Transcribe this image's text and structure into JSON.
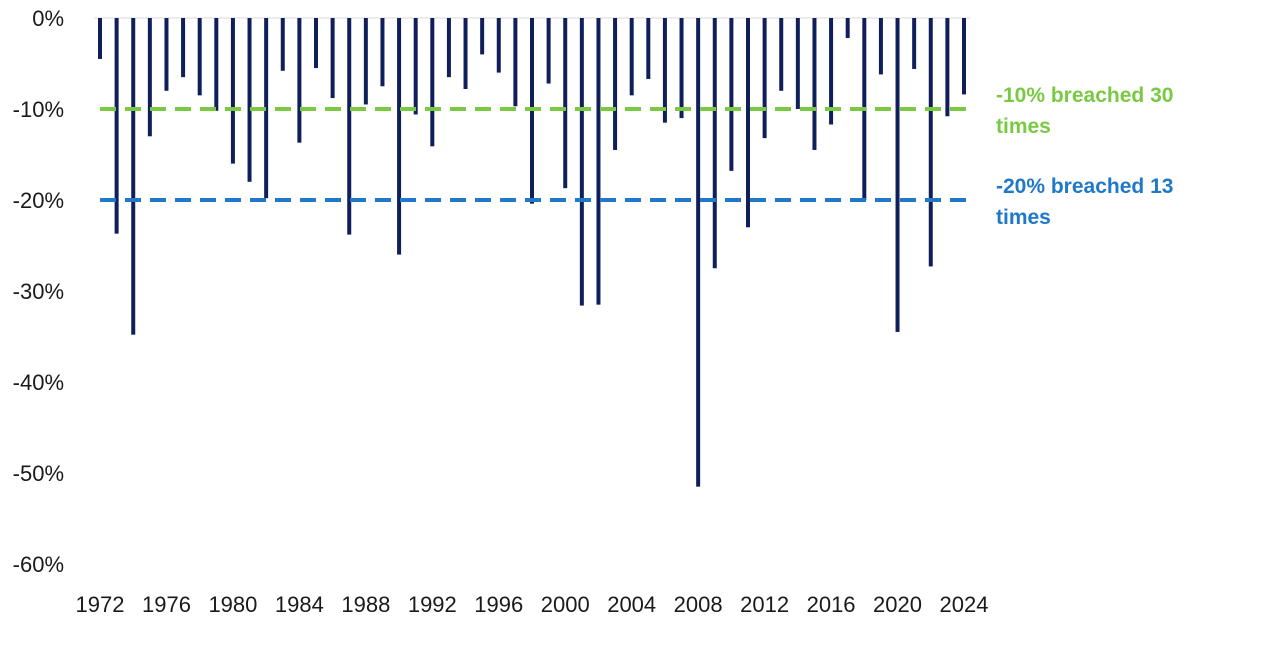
{
  "chart_data": {
    "type": "bar",
    "title": "",
    "xlabel": "",
    "ylabel": "",
    "ylim": [
      -60,
      0
    ],
    "ytick_values": [
      0,
      -10,
      -20,
      -30,
      -40,
      -50,
      -60
    ],
    "ytick_labels": [
      "0%",
      "-10%",
      "-20%",
      "-30%",
      "-40%",
      "-50%",
      "-60%"
    ],
    "xtick_labels": [
      "1972",
      "1976",
      "1980",
      "1984",
      "1988",
      "1992",
      "1996",
      "2000",
      "2004",
      "2008",
      "2012",
      "2016",
      "2020",
      "2024"
    ],
    "years": [
      1972,
      1973,
      1974,
      1975,
      1976,
      1977,
      1978,
      1979,
      1980,
      1981,
      1982,
      1983,
      1984,
      1985,
      1986,
      1987,
      1988,
      1989,
      1990,
      1991,
      1992,
      1993,
      1994,
      1995,
      1996,
      1997,
      1998,
      1999,
      2000,
      2001,
      2002,
      2003,
      2004,
      2005,
      2006,
      2007,
      2008,
      2009,
      2010,
      2011,
      2012,
      2013,
      2014,
      2015,
      2016,
      2017,
      2018,
      2019,
      2020,
      2021,
      2022,
      2023,
      2024
    ],
    "values": [
      -4.5,
      -23.7,
      -34.8,
      -13,
      -8,
      -6.5,
      -8.5,
      -10.2,
      -16,
      -18,
      -19.8,
      -5.8,
      -13.7,
      -5.5,
      -8.8,
      -23.8,
      -9.5,
      -7.5,
      -26,
      -10.6,
      -14.1,
      -6.5,
      -7.8,
      -4,
      -6,
      -9.7,
      -20.4,
      -7.2,
      -18.7,
      -31.6,
      -31.5,
      -14.5,
      -8.5,
      -6.7,
      -11.5,
      -11,
      -51.5,
      -27.5,
      -16.8,
      -23,
      -13.2,
      -8,
      -10,
      -14.5,
      -11.7,
      -2.2,
      -20,
      -6.2,
      -34.5,
      -5.6,
      -27.3,
      -10.8,
      -8.4
    ],
    "bar_color": "#0f1f5c",
    "reference_lines": [
      {
        "value": -10,
        "label_line1": "-10% breached 30",
        "label_line2": "times",
        "color": "#7ac943"
      },
      {
        "value": -20,
        "label_line1": "-20% breached 13",
        "label_line2": "times",
        "color": "#1f78c8"
      }
    ],
    "grid": false,
    "legend": "none"
  }
}
